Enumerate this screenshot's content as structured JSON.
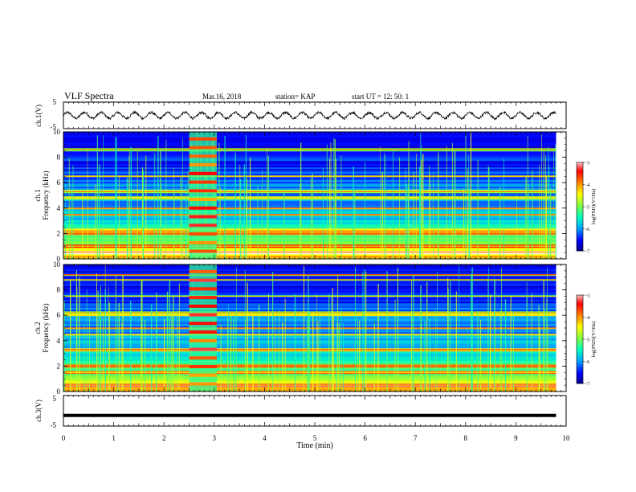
{
  "header": {
    "title": "VLF Spectra",
    "date": "Mar.16, 2018",
    "station": "station= KAP",
    "start": "start  UT  =   12: 50: 1"
  },
  "chart_data": [
    {
      "type": "line",
      "panel": "ch1-waveform",
      "ylabel": "ch.1(V)",
      "yticks": [
        "5",
        "-5"
      ],
      "ylim": [
        -5,
        5
      ],
      "xlim": [
        0,
        10
      ],
      "description_series": "oscillating waveform, amplitude about +/-1 V, period about 0.33 min",
      "series": [
        {
          "periods_per_min": 3,
          "amplitude": 1.0
        }
      ]
    },
    {
      "type": "heatmap",
      "panel": "ch1-spectrogram",
      "ylabel": "Frequency (kHz)",
      "channel_label": "ch.1",
      "yticks": [
        "0",
        "2",
        "4",
        "6",
        "8",
        "10"
      ],
      "ylim": [
        0,
        10
      ],
      "xlim": [
        0,
        9.8
      ],
      "colorbar": {
        "label": "log(PSD)(V²/Hz)",
        "ticks": [
          "-3",
          "-4",
          "-5",
          "-6",
          "-7"
        ],
        "range": [
          -7,
          -3
        ]
      },
      "bright_bands_khz": [
        0.5,
        1.0,
        2.0,
        2.3,
        3.5,
        4.0,
        4.8,
        5.3,
        6.5,
        8.6
      ],
      "burst_window_min": [
        2.5,
        3.05
      ]
    },
    {
      "type": "heatmap",
      "panel": "ch2-spectrogram",
      "ylabel": "Frequency (kHz)",
      "channel_label": "ch.2",
      "yticks": [
        "0",
        "2",
        "4",
        "6",
        "8",
        "10"
      ],
      "ylim": [
        0,
        10
      ],
      "xlim": [
        0,
        9.8
      ],
      "colorbar": {
        "label": "log(PSD)(V²/Hz)",
        "ticks": [
          "-3",
          "-4",
          "-5",
          "-6",
          "-7"
        ],
        "range": [
          -7,
          -3
        ]
      },
      "bright_bands_khz": [
        0.5,
        1.5,
        2.0,
        3.3,
        4.5,
        5.0,
        6.0,
        6.2,
        7.5,
        8.8,
        9.2
      ],
      "burst_window_min": [
        2.5,
        3.05
      ]
    },
    {
      "type": "line",
      "panel": "ch3-waveform",
      "ylabel": "ch.3(V)",
      "yticks": [
        "5",
        "-5"
      ],
      "ylim": [
        -5,
        5
      ],
      "xlim": [
        0,
        10
      ],
      "series": [
        {
          "constant_value": -1.5
        }
      ]
    }
  ],
  "xaxis": {
    "label": "Time (min)",
    "ticks": [
      "0",
      "1",
      "2",
      "3",
      "4",
      "5",
      "6",
      "7",
      "8",
      "9",
      "10"
    ],
    "range": [
      0,
      10
    ]
  },
  "colors": {
    "background": "#ffffff",
    "axes": "#000000",
    "colormap": [
      "#00007f",
      "#0000ff",
      "#00a0ff",
      "#00ffc0",
      "#80ff40",
      "#ffff00",
      "#ff8000",
      "#ff0000",
      "#ffffff"
    ]
  }
}
